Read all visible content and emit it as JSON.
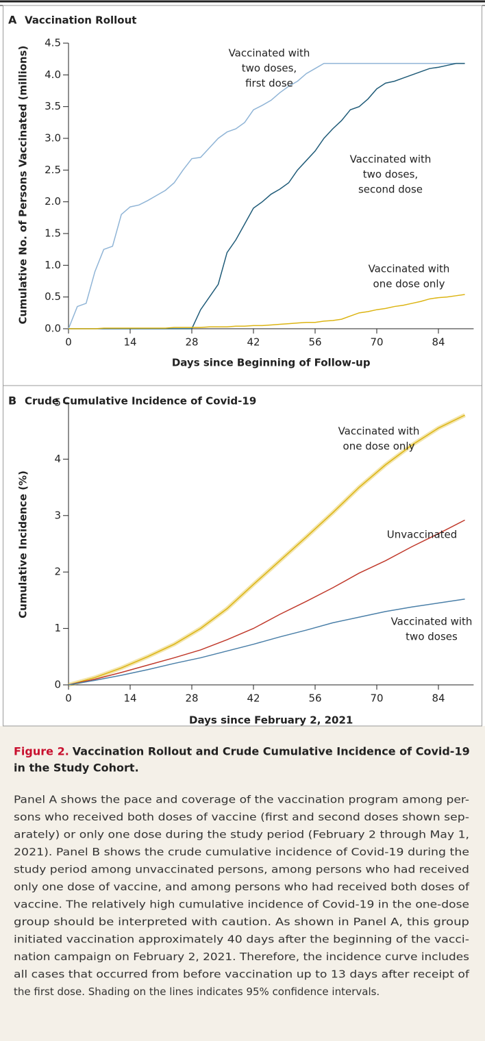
{
  "chart_data": [
    {
      "type": "line",
      "panel": "A",
      "title": "Vaccination Rollout",
      "xlabel": "Days since Beginning of Follow-up",
      "ylabel": "Cumulative No. of Persons Vaccinated (millions)",
      "x": [
        0,
        2,
        4,
        6,
        8,
        10,
        12,
        14,
        16,
        18,
        20,
        22,
        24,
        26,
        28,
        30,
        32,
        34,
        36,
        38,
        40,
        42,
        44,
        46,
        48,
        50,
        52,
        54,
        56,
        58,
        60,
        62,
        64,
        66,
        68,
        70,
        72,
        74,
        76,
        78,
        80,
        82,
        84,
        86,
        88,
        90
      ],
      "xlim": [
        0,
        92
      ],
      "xticks": [
        0,
        14,
        28,
        42,
        56,
        70,
        84
      ],
      "ylim": [
        0,
        4.5
      ],
      "yticks": [
        {
          "value": 0,
          "label": "0.0"
        },
        0.5,
        {
          "value": 1,
          "label": "1.0"
        },
        1.5,
        {
          "value": 2,
          "label": "2.0"
        },
        2.5,
        {
          "value": 3,
          "label": "3.0"
        },
        3.5,
        {
          "value": 4,
          "label": "4.0"
        },
        4.5
      ],
      "series": [
        {
          "name": [
            "Vaccinated with",
            "two doses,",
            "first dose"
          ],
          "color": "#8fb4d6",
          "values": [
            0,
            0.35,
            0.4,
            0.9,
            1.25,
            1.3,
            1.8,
            1.92,
            1.95,
            2.02,
            2.1,
            2.18,
            2.3,
            2.5,
            2.68,
            2.7,
            2.85,
            3.0,
            3.1,
            3.15,
            3.25,
            3.45,
            3.52,
            3.6,
            3.72,
            3.82,
            3.9,
            4.02,
            4.1,
            4.18,
            4.18,
            4.18,
            4.18,
            4.18,
            4.18,
            4.18,
            4.18,
            4.18,
            4.18,
            4.18,
            4.18,
            4.18,
            4.18,
            4.18,
            4.18,
            4.18
          ]
        },
        {
          "name": [
            "Vaccinated with",
            "two doses,",
            "second dose"
          ],
          "color": "#1f5b78",
          "values": [
            0,
            0,
            0,
            0,
            0,
            0,
            0,
            0,
            0,
            0,
            0,
            0,
            0,
            0,
            0,
            0.3,
            0.5,
            0.7,
            1.2,
            1.4,
            1.65,
            1.9,
            2.0,
            2.12,
            2.2,
            2.3,
            2.5,
            2.65,
            2.8,
            3.0,
            3.15,
            3.28,
            3.45,
            3.5,
            3.62,
            3.78,
            3.87,
            3.9,
            3.95,
            4.0,
            4.05,
            4.1,
            4.12,
            4.15,
            4.18,
            4.18
          ]
        },
        {
          "name": [
            "Vaccinated with",
            "one dose only"
          ],
          "color": "#dcb412",
          "values": [
            0,
            0,
            0,
            0,
            0.01,
            0.01,
            0.01,
            0.01,
            0.01,
            0.01,
            0.01,
            0.01,
            0.02,
            0.02,
            0.02,
            0.02,
            0.03,
            0.03,
            0.03,
            0.04,
            0.04,
            0.05,
            0.05,
            0.06,
            0.07,
            0.08,
            0.09,
            0.1,
            0.1,
            0.12,
            0.13,
            0.15,
            0.2,
            0.25,
            0.27,
            0.3,
            0.32,
            0.35,
            0.37,
            0.4,
            0.43,
            0.47,
            0.49,
            0.5,
            0.52,
            0.54
          ]
        }
      ]
    },
    {
      "type": "line",
      "panel": "B",
      "title": "Crude Cumulative Incidence of Covid-19",
      "xlabel": "Days since February 2, 2021",
      "ylabel": "Cumulative Incidence (%)",
      "x": [
        0,
        6,
        12,
        18,
        24,
        30,
        36,
        42,
        48,
        54,
        60,
        66,
        72,
        78,
        84,
        90
      ],
      "xlim": [
        0,
        92
      ],
      "xticks": [
        0,
        14,
        28,
        42,
        56,
        70,
        84
      ],
      "ylim": [
        0,
        5
      ],
      "yticks": [
        0,
        1,
        2,
        3,
        4,
        5
      ],
      "series": [
        {
          "name": [
            "Vaccinated with",
            "one dose only"
          ],
          "color": "#dcb412",
          "values": [
            0,
            0.13,
            0.3,
            0.5,
            0.72,
            1.0,
            1.35,
            1.78,
            2.2,
            2.62,
            3.05,
            3.5,
            3.9,
            4.25,
            4.55,
            4.78
          ]
        },
        {
          "name": [
            "Unvaccinated"
          ],
          "color": "#c0392b",
          "values": [
            0,
            0.1,
            0.22,
            0.35,
            0.48,
            0.62,
            0.8,
            1.0,
            1.25,
            1.48,
            1.72,
            1.98,
            2.2,
            2.45,
            2.68,
            2.92
          ]
        },
        {
          "name": [
            "Vaccinated with",
            "two doses"
          ],
          "color": "#4a7fa8",
          "values": [
            0,
            0.08,
            0.17,
            0.27,
            0.38,
            0.48,
            0.6,
            0.72,
            0.85,
            0.97,
            1.1,
            1.2,
            1.3,
            1.38,
            1.45,
            1.52
          ]
        }
      ]
    }
  ],
  "caption": {
    "label": "Figure 2.",
    "title_lines": [
      "Vaccination Rollout and Crude Cumulative Incidence of Covid-19",
      "in the Study Cohort."
    ],
    "lines": [
      "Panel A shows the pace and coverage of the vaccination program among per-",
      "sons who received both doses of vaccine (first and second doses shown sep-",
      "arately) or only one dose during the study period (February 2 through May 1,",
      "2021). Panel B shows the crude cumulative incidence of Covid-19 during the",
      "study period among unvaccinated persons, among persons who had received",
      "only one dose of vaccine, and among persons who had received both doses of",
      "vaccine. The relatively high cumulative incidence of Covid-19 in the one-dose",
      "group should be interpreted with caution. As shown in Panel A, this group",
      "initiated vaccination approximately 40 days after the beginning of the vacci-",
      "nation campaign on February 2, 2021. Therefore, the incidence curve includes",
      "all cases that occurred from before vaccination up to 13 days after receipt of",
      "the first dose. Shading on the lines indicates 95% confidence intervals."
    ]
  }
}
